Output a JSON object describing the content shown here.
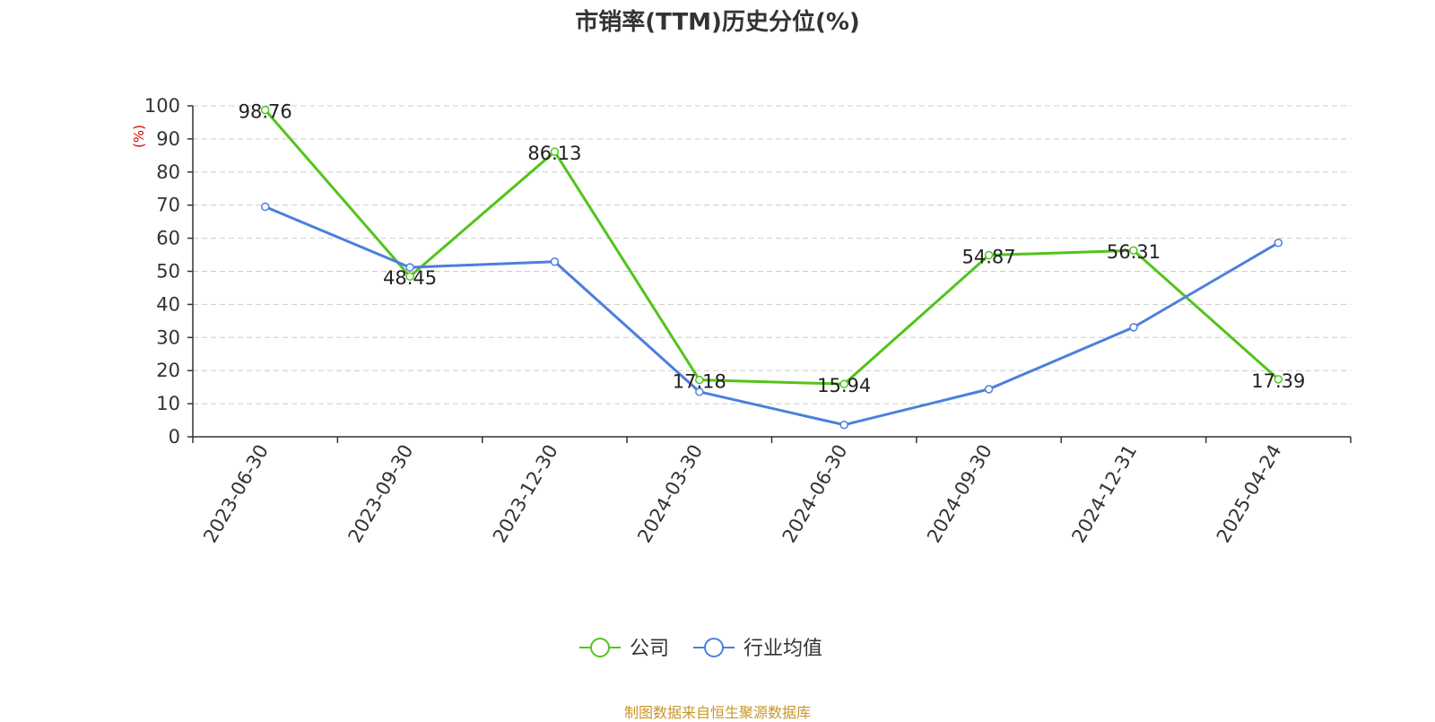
{
  "title": "市销率(TTM)历史分位(%)",
  "source": "制图数据来自恒生聚源数据库",
  "chart_data": {
    "type": "line",
    "title": "市销率(TTM)历史分位(%)",
    "xlabel": "",
    "ylabel": "(%)",
    "ylim": [
      0,
      100
    ],
    "yticks": [
      0,
      10,
      20,
      30,
      40,
      50,
      60,
      70,
      80,
      90,
      100
    ],
    "categories": [
      "2023-06-30",
      "2023-09-30",
      "2023-12-30",
      "2024-03-30",
      "2024-06-30",
      "2024-09-30",
      "2024-12-31",
      "2025-04-24"
    ],
    "grid": true,
    "legend_position": "bottom",
    "series": [
      {
        "name": "公司",
        "color": "#52c41a",
        "values": [
          98.76,
          48.45,
          86.13,
          17.18,
          15.94,
          54.87,
          56.31,
          17.39
        ],
        "labels": [
          "98.76",
          "48.45",
          "86.13",
          "17.18",
          "15.94",
          "54.87",
          "56.31",
          "17.39"
        ]
      },
      {
        "name": "行业均值",
        "color": "#4c7fdc",
        "values": [
          69.5,
          51.2,
          52.9,
          13.6,
          3.6,
          14.4,
          33.1,
          58.6
        ]
      }
    ]
  }
}
